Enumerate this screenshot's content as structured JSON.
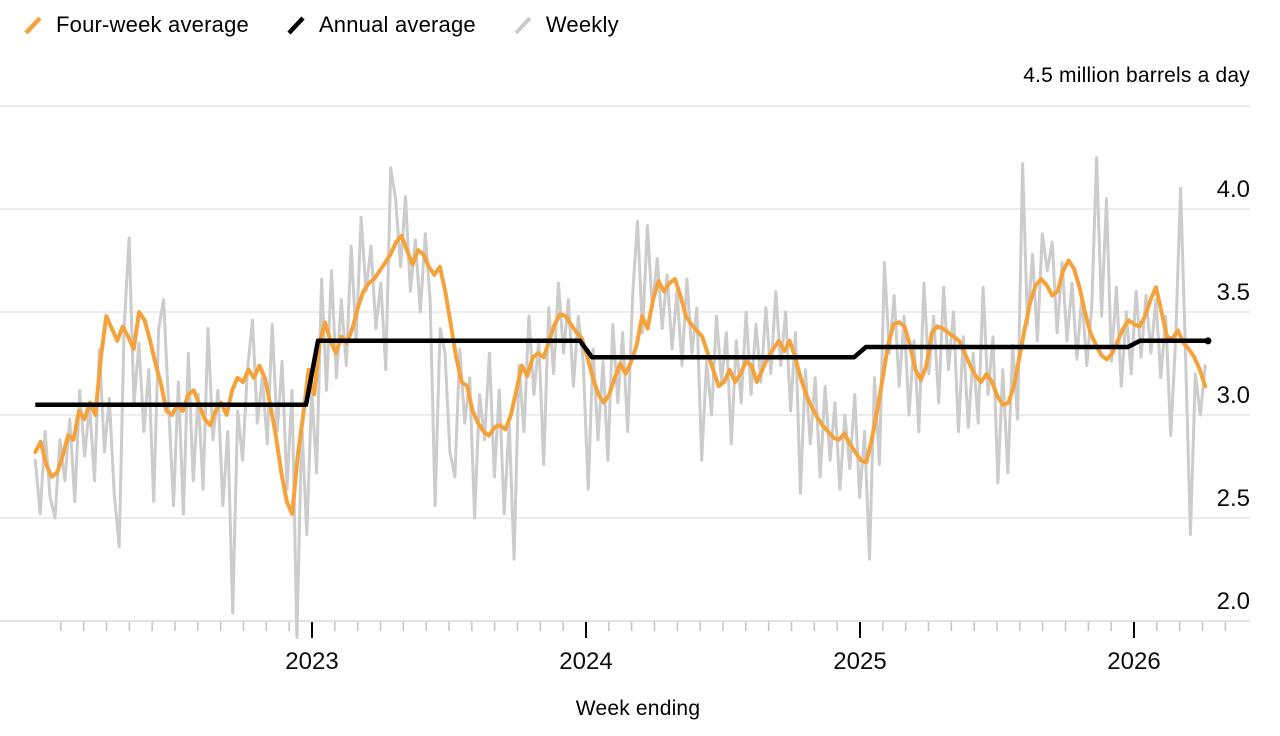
{
  "legend": [
    {
      "label": "Four-week average",
      "color": "#F5A23B"
    },
    {
      "label": "Annual average",
      "color": "#000000"
    },
    {
      "label": "Weekly",
      "color": "#CCCCCC"
    }
  ],
  "chart_data": {
    "type": "line",
    "unit_label": "4.5 million barrels a day",
    "xlabel": "Week ending",
    "ylabel": "million barrels a day",
    "ylim": [
      1.9,
      4.5
    ],
    "y_gridline_values": [
      4.5,
      4.0,
      3.5,
      3.0,
      2.5,
      2.0
    ],
    "y_tick_values": [
      4.0,
      3.5,
      3.0,
      2.5,
      2.0
    ],
    "y_tick_labels": [
      "4.0",
      "3.5",
      "3.0",
      "2.5",
      "2.0"
    ],
    "x_tick_years": [
      2023,
      2024,
      2025,
      2026
    ],
    "x_tick_labels": [
      "2023",
      "2024",
      "2025",
      "2026"
    ],
    "grid": true,
    "legend_position": "top-left",
    "series": [
      {
        "name": "Weekly",
        "color": "#CCCCCC",
        "stroke_width": 3,
        "start_year": 2021.99,
        "end_year": 2026.26,
        "values": [
          2.78,
          2.52,
          2.92,
          2.6,
          2.5,
          2.88,
          2.68,
          2.98,
          2.58,
          3.12,
          2.8,
          3.05,
          2.68,
          3.32,
          2.82,
          3.08,
          2.62,
          2.36,
          3.42,
          3.86,
          3.05,
          3.35,
          2.92,
          3.22,
          2.58,
          3.42,
          3.56,
          3.06,
          2.56,
          3.16,
          2.52,
          3.3,
          2.68,
          3.1,
          2.64,
          3.42,
          2.88,
          3.12,
          2.56,
          2.92,
          2.04,
          3.02,
          2.78,
          3.22,
          3.46,
          2.96,
          3.18,
          2.86,
          3.44,
          2.92,
          3.26,
          2.64,
          3.12,
          1.92,
          2.96,
          2.42,
          3.12,
          2.72,
          3.66,
          3.12,
          3.7,
          3.18,
          3.56,
          3.24,
          3.82,
          3.36,
          3.96,
          3.6,
          3.82,
          3.42,
          3.64,
          3.22,
          4.2,
          4.05,
          3.72,
          4.06,
          3.6,
          3.85,
          3.5,
          3.88,
          3.55,
          2.56,
          3.42,
          3.3,
          2.82,
          2.7,
          3.32,
          2.96,
          3.18,
          2.5,
          3.1,
          2.88,
          3.3,
          2.7,
          3.12,
          2.52,
          2.96,
          2.3,
          3.24,
          2.92,
          3.48,
          3.1,
          3.36,
          2.76,
          3.52,
          3.2,
          3.64,
          3.3,
          3.56,
          3.14,
          3.48,
          3.26,
          2.64,
          3.32,
          2.88,
          3.26,
          2.78,
          3.44,
          3.06,
          3.4,
          2.92,
          3.58,
          3.94,
          3.4,
          3.92,
          3.52,
          3.76,
          3.42,
          3.68,
          3.32,
          3.6,
          3.24,
          3.66,
          3.3,
          3.52,
          2.78,
          3.26,
          3.0,
          3.48,
          3.16,
          3.4,
          2.86,
          3.36,
          3.06,
          3.5,
          3.1,
          3.44,
          3.16,
          3.52,
          3.2,
          3.6,
          3.24,
          3.5,
          3.02,
          3.4,
          2.62,
          3.22,
          2.86,
          3.18,
          2.7,
          3.14,
          2.78,
          3.06,
          2.64,
          3.0,
          2.74,
          3.1,
          2.6,
          2.92,
          2.3,
          3.18,
          2.76,
          3.74,
          3.3,
          3.58,
          3.14,
          3.48,
          3.0,
          3.36,
          2.92,
          3.64,
          3.2,
          3.48,
          3.06,
          3.62,
          3.22,
          3.5,
          2.92,
          3.38,
          2.94,
          3.3,
          2.96,
          3.62,
          3.1,
          3.38,
          2.67,
          3.22,
          2.72,
          3.34,
          2.98,
          4.22,
          3.44,
          3.78,
          3.36,
          3.88,
          3.7,
          3.84,
          3.4,
          3.74,
          3.36,
          3.64,
          3.27,
          3.58,
          3.24,
          3.52,
          4.25,
          3.48,
          4.05,
          3.26,
          3.62,
          3.14,
          3.5,
          3.2,
          3.6,
          3.28,
          3.58,
          3.3,
          3.56,
          3.18,
          3.48,
          2.9,
          3.36,
          4.1,
          3.3,
          2.42,
          3.2,
          3.0,
          3.24
        ]
      },
      {
        "name": "Four-week average",
        "color": "#F5A23B",
        "stroke_width": 4,
        "start_year": 2021.99,
        "end_year": 2026.26,
        "values": [
          2.82,
          2.87,
          2.76,
          2.7,
          2.72,
          2.8,
          2.9,
          2.88,
          3.02,
          2.98,
          3.06,
          3.0,
          3.28,
          3.48,
          3.42,
          3.36,
          3.43,
          3.38,
          3.32,
          3.5,
          3.46,
          3.36,
          3.25,
          3.15,
          3.02,
          3.0,
          3.05,
          3.02,
          3.1,
          3.12,
          3.05,
          2.98,
          2.95,
          3.02,
          3.06,
          3.0,
          3.12,
          3.18,
          3.16,
          3.22,
          3.18,
          3.24,
          3.18,
          3.05,
          2.9,
          2.72,
          2.58,
          2.52,
          2.8,
          3.0,
          3.22,
          3.1,
          3.35,
          3.45,
          3.36,
          3.3,
          3.38,
          3.35,
          3.42,
          3.52,
          3.6,
          3.64,
          3.66,
          3.7,
          3.74,
          3.78,
          3.84,
          3.87,
          3.8,
          3.73,
          3.8,
          3.78,
          3.72,
          3.68,
          3.72,
          3.6,
          3.44,
          3.28,
          3.16,
          3.14,
          3.02,
          2.96,
          2.92,
          2.9,
          2.94,
          2.95,
          2.93,
          3.0,
          3.12,
          3.24,
          3.19,
          3.28,
          3.3,
          3.28,
          3.36,
          3.44,
          3.49,
          3.48,
          3.44,
          3.4,
          3.37,
          3.28,
          3.18,
          3.1,
          3.06,
          3.1,
          3.18,
          3.25,
          3.2,
          3.26,
          3.34,
          3.48,
          3.42,
          3.56,
          3.65,
          3.6,
          3.64,
          3.66,
          3.58,
          3.48,
          3.44,
          3.41,
          3.38,
          3.3,
          3.22,
          3.14,
          3.16,
          3.22,
          3.16,
          3.2,
          3.26,
          3.24,
          3.16,
          3.22,
          3.28,
          3.32,
          3.36,
          3.31,
          3.36,
          3.28,
          3.18,
          3.1,
          3.04,
          2.99,
          2.95,
          2.92,
          2.89,
          2.88,
          2.91,
          2.86,
          2.82,
          2.78,
          2.77,
          2.88,
          3.02,
          3.18,
          3.34,
          3.44,
          3.45,
          3.43,
          3.34,
          3.22,
          3.17,
          3.24,
          3.4,
          3.43,
          3.42,
          3.4,
          3.38,
          3.36,
          3.3,
          3.24,
          3.19,
          3.16,
          3.2,
          3.16,
          3.09,
          3.05,
          3.06,
          3.14,
          3.28,
          3.42,
          3.55,
          3.63,
          3.66,
          3.63,
          3.58,
          3.6,
          3.7,
          3.75,
          3.71,
          3.62,
          3.5,
          3.4,
          3.34,
          3.29,
          3.27,
          3.3,
          3.36,
          3.42,
          3.46,
          3.44,
          3.43,
          3.48,
          3.56,
          3.62,
          3.5,
          3.38,
          3.37,
          3.41,
          3.35,
          3.32,
          3.28,
          3.22,
          3.14
        ]
      },
      {
        "name": "Annual average",
        "color": "#000000",
        "stroke_width": 4.5,
        "type": "step",
        "start_year": 2021.99,
        "end_year": 2026.27,
        "annual_averages": [
          {
            "year": 2022,
            "value": 3.05
          },
          {
            "year": 2023,
            "value": 3.36
          },
          {
            "year": 2024,
            "value": 3.28
          },
          {
            "year": 2025,
            "value": 3.33
          },
          {
            "year": 2026,
            "value": 3.36
          }
        ]
      }
    ]
  }
}
